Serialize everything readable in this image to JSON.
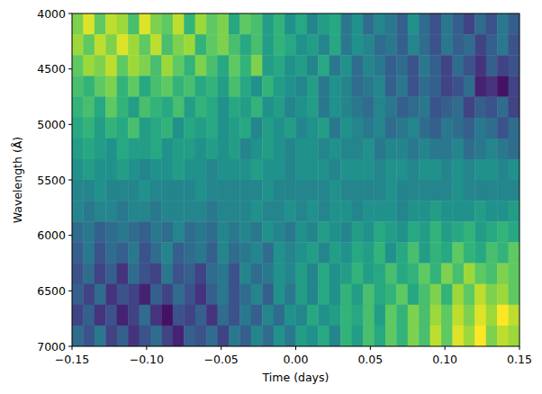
{
  "chart_data": {
    "type": "heatmap",
    "xlabel": "Time (days)",
    "ylabel": "Wavelength (Å)",
    "xlim": [
      -0.15,
      0.15
    ],
    "ylim": [
      7000,
      4000
    ],
    "xticks": [
      {
        "value": -0.15,
        "label": "−0.15"
      },
      {
        "value": -0.1,
        "label": "−0.10"
      },
      {
        "value": -0.05,
        "label": "−0.05"
      },
      {
        "value": 0,
        "label": "0.00"
      },
      {
        "value": 0.05,
        "label": "0.05"
      },
      {
        "value": 0.1,
        "label": "0.10"
      },
      {
        "value": 0.15,
        "label": "0.15"
      }
    ],
    "yticks": [
      4000,
      4500,
      5000,
      5500,
      6000,
      6500,
      7000
    ],
    "x_edges": [
      -0.15,
      -0.1425,
      -0.135,
      -0.1275,
      -0.12,
      -0.1125,
      -0.105,
      -0.0975,
      -0.09,
      -0.0825,
      -0.075,
      -0.0675,
      -0.06,
      -0.0525,
      -0.045,
      -0.0375,
      -0.03,
      -0.0225,
      -0.015,
      -0.0075,
      0,
      0.0075,
      0.015,
      0.0225,
      0.03,
      0.0375,
      0.045,
      0.0525,
      0.06,
      0.0675,
      0.075,
      0.0825,
      0.09,
      0.0975,
      0.105,
      0.1125,
      0.12,
      0.1275,
      0.135,
      0.1425,
      0.15
    ],
    "y_edges": [
      4000,
      4187.5,
      4375,
      4562.5,
      4750,
      4937.5,
      5125,
      5312.5,
      5500,
      5687.5,
      5875,
      6062.5,
      6250,
      6437.5,
      6625,
      6812.5,
      7000
    ],
    "zlim": [
      -1,
      1
    ],
    "z": [
      [
        0.6,
        0.9,
        0.5,
        0.8,
        0.7,
        0.4,
        0.9,
        0.6,
        0.5,
        0.8,
        0.3,
        0.7,
        0.5,
        0.6,
        0.2,
        0.5,
        0.4,
        0.1,
        0.3,
        0.0,
        0.2,
        -0.1,
        0.1,
        0.2,
        -0.2,
        0.0,
        -0.3,
        -0.1,
        -0.2,
        -0.4,
        0.0,
        -0.3,
        -0.5,
        -0.2,
        -0.4,
        -0.6,
        -0.3,
        -0.5,
        -0.2,
        -0.4
      ],
      [
        0.7,
        0.5,
        0.8,
        0.6,
        0.9,
        0.7,
        0.5,
        0.8,
        0.4,
        0.6,
        0.7,
        0.3,
        0.5,
        0.6,
        0.4,
        0.2,
        0.4,
        0.1,
        0.3,
        0.2,
        0.0,
        0.1,
        -0.1,
        0.2,
        -0.2,
        0.0,
        -0.1,
        -0.3,
        -0.2,
        -0.4,
        -0.1,
        -0.3,
        -0.5,
        -0.2,
        -0.4,
        -0.3,
        -0.6,
        -0.4,
        -0.2,
        -0.5
      ],
      [
        0.5,
        0.7,
        0.6,
        0.8,
        0.5,
        0.7,
        0.6,
        0.4,
        0.7,
        0.5,
        0.3,
        0.6,
        0.4,
        0.2,
        0.5,
        0.3,
        0.6,
        0.1,
        0.2,
        0.0,
        0.1,
        -0.1,
        0.2,
        -0.2,
        0.0,
        -0.3,
        -0.1,
        -0.2,
        -0.4,
        -0.3,
        -0.5,
        -0.2,
        -0.4,
        -0.6,
        -0.3,
        -0.5,
        -0.7,
        -0.4,
        -0.6,
        -0.5
      ],
      [
        0.4,
        0.3,
        0.5,
        0.6,
        0.3,
        0.5,
        0.2,
        0.4,
        0.5,
        0.3,
        0.4,
        0.2,
        0.3,
        0.1,
        0.4,
        0.2,
        0.0,
        0.3,
        0.1,
        0.0,
        -0.1,
        0.1,
        -0.2,
        0.0,
        -0.1,
        -0.3,
        -0.2,
        -0.1,
        -0.4,
        -0.2,
        -0.5,
        -0.3,
        -0.4,
        -0.6,
        -0.5,
        -0.3,
        -0.8,
        -0.7,
        -0.9,
        -0.6
      ],
      [
        0.3,
        0.4,
        0.2,
        0.5,
        0.3,
        0.1,
        0.4,
        0.3,
        0.2,
        0.4,
        0.1,
        0.3,
        0.2,
        0.0,
        0.2,
        0.1,
        0.3,
        0.0,
        0.1,
        -0.1,
        0.0,
        0.1,
        -0.2,
        0.0,
        -0.1,
        -0.2,
        -0.3,
        -0.1,
        -0.2,
        -0.4,
        -0.3,
        -0.2,
        -0.5,
        -0.4,
        -0.3,
        -0.6,
        -0.4,
        -0.5,
        -0.3,
        -0.6
      ],
      [
        0.2,
        0.3,
        0.1,
        0.3,
        0.2,
        0.4,
        0.1,
        0.2,
        0.3,
        0.0,
        0.2,
        0.1,
        0.2,
        0.0,
        0.1,
        0.2,
        -0.1,
        0.1,
        0.0,
        0.1,
        -0.1,
        0.0,
        0.1,
        -0.2,
        0.0,
        -0.1,
        -0.2,
        -0.1,
        -0.3,
        -0.2,
        -0.1,
        -0.3,
        -0.4,
        -0.2,
        -0.3,
        -0.4,
        -0.2,
        -0.3,
        -0.5,
        -0.3
      ],
      [
        0.1,
        0.2,
        0.1,
        0.0,
        0.2,
        0.1,
        0.1,
        0.2,
        0.0,
        0.1,
        0.1,
        0.0,
        0.1,
        0.0,
        0.1,
        -0.1,
        0.0,
        0.1,
        0.0,
        -0.1,
        0.0,
        0.0,
        -0.1,
        0.0,
        -0.1,
        -0.1,
        0.0,
        -0.2,
        -0.1,
        -0.1,
        -0.2,
        -0.1,
        -0.2,
        -0.2,
        -0.1,
        -0.3,
        -0.2,
        -0.1,
        -0.2,
        -0.3
      ],
      [
        0.0,
        0.1,
        0.0,
        0.0,
        0.1,
        0.0,
        -0.1,
        0.0,
        0.0,
        0.1,
        0.0,
        0.0,
        -0.1,
        0.0,
        0.0,
        0.0,
        0.1,
        0.0,
        0.0,
        -0.1,
        0.0,
        0.0,
        0.0,
        -0.1,
        0.0,
        0.0,
        0.0,
        -0.1,
        0.0,
        0.0,
        -0.1,
        0.0,
        0.0,
        -0.1,
        0.0,
        -0.1,
        0.0,
        0.0,
        -0.1,
        0.0
      ],
      [
        -0.1,
        -0.1,
        0.0,
        -0.1,
        -0.1,
        -0.1,
        0.0,
        -0.1,
        -0.1,
        -0.1,
        -0.1,
        0.0,
        -0.1,
        -0.1,
        -0.1,
        -0.1,
        -0.1,
        0.0,
        -0.1,
        -0.1,
        -0.1,
        -0.1,
        -0.1,
        0.0,
        -0.1,
        -0.1,
        -0.1,
        -0.1,
        0.0,
        -0.1,
        -0.1,
        -0.1,
        -0.1,
        -0.1,
        0.0,
        -0.1,
        -0.1,
        -0.1,
        -0.1,
        -0.1
      ],
      [
        -0.1,
        -0.2,
        -0.1,
        -0.1,
        -0.2,
        -0.1,
        -0.1,
        -0.2,
        -0.1,
        -0.1,
        -0.1,
        -0.1,
        -0.2,
        -0.1,
        -0.1,
        -0.1,
        0.0,
        -0.1,
        -0.1,
        0.0,
        -0.1,
        0.0,
        -0.1,
        0.0,
        0.0,
        -0.1,
        0.0,
        0.0,
        0.0,
        -0.1,
        0.0,
        0.0,
        0.1,
        0.0,
        0.0,
        0.0,
        0.1,
        0.0,
        0.0,
        0.1
      ],
      [
        -0.3,
        -0.2,
        -0.4,
        -0.3,
        -0.2,
        -0.3,
        -0.4,
        -0.2,
        -0.3,
        -0.1,
        -0.3,
        -0.2,
        -0.3,
        -0.1,
        -0.2,
        -0.1,
        -0.2,
        0.0,
        -0.1,
        -0.2,
        0.0,
        -0.1,
        0.1,
        0.0,
        -0.1,
        0.1,
        0.0,
        0.2,
        0.1,
        0.0,
        0.2,
        0.1,
        0.3,
        0.1,
        0.2,
        0.3,
        0.1,
        0.2,
        0.3,
        0.2
      ],
      [
        -0.4,
        -0.2,
        -0.5,
        -0.3,
        -0.4,
        -0.2,
        -0.5,
        -0.3,
        -0.1,
        -0.4,
        -0.3,
        -0.2,
        -0.4,
        -0.1,
        -0.3,
        -0.2,
        -0.1,
        -0.3,
        0.0,
        -0.1,
        0.0,
        0.1,
        -0.1,
        0.1,
        0.0,
        0.2,
        0.1,
        0.3,
        0.0,
        0.2,
        0.4,
        0.1,
        0.3,
        0.2,
        0.5,
        0.3,
        0.2,
        0.4,
        0.3,
        0.5
      ],
      [
        -0.5,
        -0.3,
        -0.6,
        -0.4,
        -0.7,
        -0.3,
        -0.5,
        -0.6,
        -0.2,
        -0.5,
        -0.4,
        -0.6,
        -0.3,
        -0.2,
        -0.5,
        -0.1,
        -0.3,
        -0.2,
        0.0,
        -0.1,
        0.1,
        -0.1,
        0.2,
        0.0,
        0.1,
        0.3,
        0.1,
        0.2,
        0.4,
        0.2,
        0.3,
        0.5,
        0.3,
        0.6,
        0.4,
        0.7,
        0.5,
        0.4,
        0.6,
        0.5
      ],
      [
        -0.4,
        -0.6,
        -0.3,
        -0.7,
        -0.5,
        -0.6,
        -0.8,
        -0.4,
        -0.6,
        -0.3,
        -0.5,
        -0.7,
        -0.4,
        -0.2,
        -0.5,
        -0.3,
        -0.1,
        -0.4,
        0.0,
        -0.2,
        0.1,
        -0.1,
        0.2,
        0.0,
        0.3,
        0.1,
        0.4,
        0.2,
        0.3,
        0.5,
        0.2,
        0.4,
        0.6,
        0.3,
        0.7,
        0.5,
        0.8,
        0.6,
        0.7,
        0.5
      ],
      [
        -0.6,
        -0.4,
        -0.7,
        -0.5,
        -0.8,
        -0.6,
        -0.3,
        -0.7,
        -0.9,
        -0.5,
        -0.6,
        -0.4,
        -0.7,
        -0.3,
        -0.5,
        -0.2,
        -0.4,
        -0.1,
        -0.3,
        0.0,
        -0.1,
        0.2,
        0.0,
        0.1,
        0.3,
        0.2,
        0.4,
        0.1,
        0.5,
        0.3,
        0.6,
        0.4,
        0.7,
        0.5,
        0.8,
        0.6,
        0.9,
        0.7,
        1.0,
        0.8
      ],
      [
        -0.3,
        -0.5,
        -0.2,
        -0.6,
        -0.4,
        -0.7,
        -0.5,
        -0.3,
        -0.6,
        -0.8,
        -0.4,
        -0.5,
        -0.3,
        -0.6,
        -0.2,
        -0.4,
        -0.1,
        -0.3,
        0.0,
        -0.2,
        0.1,
        0.0,
        0.2,
        -0.1,
        0.3,
        0.1,
        0.4,
        0.2,
        0.5,
        0.3,
        0.6,
        0.4,
        0.8,
        0.5,
        0.9,
        0.7,
        1.0,
        0.6,
        0.8,
        0.7
      ]
    ]
  }
}
